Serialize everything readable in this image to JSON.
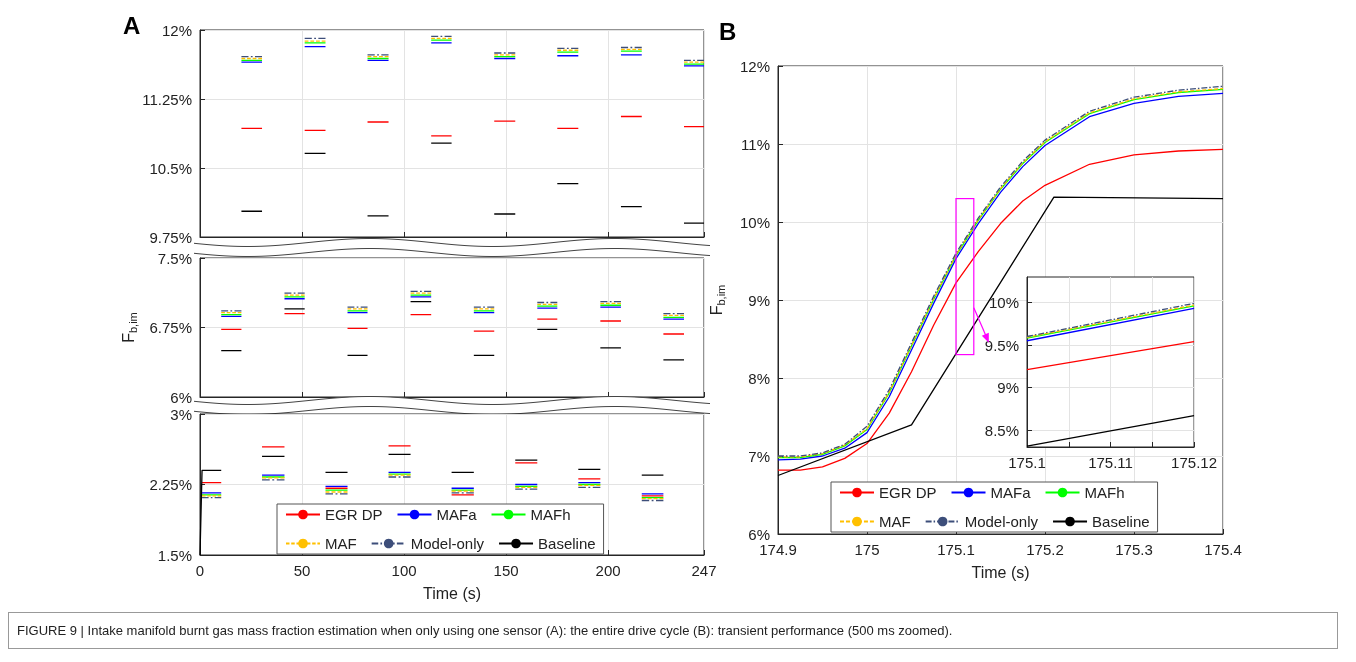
{
  "chart_data": [
    {
      "type": "line",
      "title": "A",
      "xlim": [
        0,
        247
      ],
      "xticks": [
        0,
        50,
        100,
        150,
        200,
        247
      ],
      "ylim": [
        9.75,
        12
      ],
      "yticks": [
        {
          "value": 9.75,
          "label": "9.75%"
        },
        {
          "value": 10.5,
          "label": "10.5%"
        },
        {
          "value": 11.25,
          "label": "11.25%"
        },
        {
          "value": 12,
          "label": "12%"
        }
      ],
      "tick_labels": "y",
      "grid": true,
      "marker": "none",
      "annotations": [
        "FIGURE 9 | Intake manifold burnt gas mass fraction estimation when only using one sensor (A): the entire drive cycle (B): transient performance (500 ms zoomed)."
      ],
      "series": [
        {
          "color": "#ff0000",
          "line_style": "solid",
          "x": [
            20.3,
            30.4
          ],
          "values": [
            10.93,
            10.93
          ]
        },
        {
          "color": "#ff0000",
          "line_style": "solid",
          "x": [
            51.3,
            61.5
          ],
          "values": [
            10.91,
            10.91
          ]
        },
        {
          "color": "#ff0000",
          "line_style": "solid",
          "x": [
            82.1,
            92.4
          ],
          "values": [
            11.0,
            11.0
          ]
        },
        {
          "color": "#ff0000",
          "line_style": "solid",
          "x": [
            113.3,
            123.3
          ],
          "values": [
            10.85,
            10.85
          ]
        },
        {
          "color": "#ff0000",
          "line_style": "solid",
          "x": [
            144.2,
            154.5
          ],
          "values": [
            11.01,
            11.01
          ]
        },
        {
          "color": "#ff0000",
          "line_style": "solid",
          "x": [
            175.1,
            185.4
          ],
          "values": [
            10.93,
            10.93
          ]
        },
        {
          "color": "#ff0000",
          "line_style": "solid",
          "x": [
            206.3,
            216.5
          ],
          "values": [
            11.06,
            11.06
          ]
        },
        {
          "color": "#ff0000",
          "line_style": "solid",
          "x": [
            237.2,
            247
          ],
          "values": [
            10.95,
            10.95
          ]
        },
        {
          "color": "#0000ff",
          "line_style": "solid",
          "x": [
            20.3,
            30.4
          ],
          "values": [
            11.65,
            11.65
          ]
        },
        {
          "color": "#0000ff",
          "line_style": "solid",
          "x": [
            51.3,
            61.5
          ],
          "values": [
            11.82,
            11.82
          ]
        },
        {
          "color": "#0000ff",
          "line_style": "solid",
          "x": [
            82.1,
            92.4
          ],
          "values": [
            11.67,
            11.67
          ]
        },
        {
          "color": "#0000ff",
          "line_style": "solid",
          "x": [
            113.3,
            123.3
          ],
          "values": [
            11.86,
            11.86
          ]
        },
        {
          "color": "#0000ff",
          "line_style": "solid",
          "x": [
            144.2,
            154.5
          ],
          "values": [
            11.69,
            11.69
          ]
        },
        {
          "color": "#0000ff",
          "line_style": "solid",
          "x": [
            175.1,
            185.4
          ],
          "values": [
            11.72,
            11.72
          ]
        },
        {
          "color": "#0000ff",
          "line_style": "solid",
          "x": [
            206.3,
            216.5
          ],
          "values": [
            11.73,
            11.73
          ]
        },
        {
          "color": "#0000ff",
          "line_style": "solid",
          "x": [
            237.2,
            247
          ],
          "values": [
            11.61,
            11.61
          ]
        },
        {
          "color": "#00ff00",
          "line_style": "solid",
          "x": [
            20.3,
            30.4
          ],
          "values": [
            11.67,
            11.67
          ]
        },
        {
          "color": "#00ff00",
          "line_style": "solid",
          "x": [
            51.3,
            61.5
          ],
          "values": [
            11.86,
            11.86
          ]
        },
        {
          "color": "#00ff00",
          "line_style": "solid",
          "x": [
            82.1,
            92.4
          ],
          "values": [
            11.69,
            11.69
          ]
        },
        {
          "color": "#00ff00",
          "line_style": "solid",
          "x": [
            113.3,
            123.3
          ],
          "values": [
            11.89,
            11.89
          ]
        },
        {
          "color": "#00ff00",
          "line_style": "solid",
          "x": [
            144.2,
            154.5
          ],
          "values": [
            11.71,
            11.71
          ]
        },
        {
          "color": "#00ff00",
          "line_style": "solid",
          "x": [
            175.1,
            185.4
          ],
          "values": [
            11.76,
            11.76
          ]
        },
        {
          "color": "#00ff00",
          "line_style": "solid",
          "x": [
            206.3,
            216.5
          ],
          "values": [
            11.77,
            11.77
          ]
        },
        {
          "color": "#00ff00",
          "line_style": "solid",
          "x": [
            237.2,
            247
          ],
          "values": [
            11.63,
            11.63
          ]
        },
        {
          "color": "#ffc000",
          "line_style": "dashed",
          "x": [
            20.3,
            30.4
          ],
          "values": [
            11.69,
            11.69
          ]
        },
        {
          "color": "#ffc000",
          "line_style": "dashed",
          "x": [
            51.3,
            61.5
          ],
          "values": [
            11.88,
            11.88
          ]
        },
        {
          "color": "#ffc000",
          "line_style": "dashed",
          "x": [
            82.1,
            92.4
          ],
          "values": [
            11.71,
            11.71
          ]
        },
        {
          "color": "#ffc000",
          "line_style": "dashed",
          "x": [
            113.3,
            123.3
          ],
          "values": [
            11.91,
            11.91
          ]
        },
        {
          "color": "#ffc000",
          "line_style": "dashed",
          "x": [
            144.2,
            154.5
          ],
          "values": [
            11.73,
            11.73
          ]
        },
        {
          "color": "#ffc000",
          "line_style": "dashed",
          "x": [
            175.1,
            185.4
          ],
          "values": [
            11.78,
            11.78
          ]
        },
        {
          "color": "#ffc000",
          "line_style": "dashed",
          "x": [
            206.3,
            216.5
          ],
          "values": [
            11.79,
            11.79
          ]
        },
        {
          "color": "#ffc000",
          "line_style": "dashed",
          "x": [
            237.2,
            247
          ],
          "values": [
            11.65,
            11.65
          ]
        },
        {
          "color": "#3d4e7a",
          "line_style": "dashdot",
          "x": [
            20.3,
            30.4
          ],
          "values": [
            11.71,
            11.71
          ]
        },
        {
          "color": "#3d4e7a",
          "line_style": "dashdot",
          "x": [
            51.3,
            61.5
          ],
          "values": [
            11.91,
            11.91
          ]
        },
        {
          "color": "#3d4e7a",
          "line_style": "dashdot",
          "x": [
            82.1,
            92.4
          ],
          "values": [
            11.73,
            11.73
          ]
        },
        {
          "color": "#3d4e7a",
          "line_style": "dashdot",
          "x": [
            113.3,
            123.3
          ],
          "values": [
            11.93,
            11.93
          ]
        },
        {
          "color": "#3d4e7a",
          "line_style": "dashdot",
          "x": [
            144.2,
            154.5
          ],
          "values": [
            11.75,
            11.75
          ]
        },
        {
          "color": "#3d4e7a",
          "line_style": "dashdot",
          "x": [
            175.1,
            185.4
          ],
          "values": [
            11.8,
            11.8
          ]
        },
        {
          "color": "#3d4e7a",
          "line_style": "dashdot",
          "x": [
            206.3,
            216.5
          ],
          "values": [
            11.81,
            11.81
          ]
        },
        {
          "color": "#3d4e7a",
          "line_style": "dashdot",
          "x": [
            237.2,
            247
          ],
          "values": [
            11.67,
            11.67
          ]
        },
        {
          "color": "#000000",
          "line_style": "solid",
          "x": [
            20.3,
            30.4
          ],
          "values": [
            10.03,
            10.03
          ]
        },
        {
          "color": "#000000",
          "line_style": "solid",
          "x": [
            51.3,
            61.5
          ],
          "values": [
            10.66,
            10.66
          ]
        },
        {
          "color": "#000000",
          "line_style": "solid",
          "x": [
            82.1,
            92.4
          ],
          "values": [
            9.98,
            9.98
          ]
        },
        {
          "color": "#000000",
          "line_style": "solid",
          "x": [
            113.3,
            123.3
          ],
          "values": [
            10.77,
            10.77
          ]
        },
        {
          "color": "#000000",
          "line_style": "solid",
          "x": [
            144.2,
            154.5
          ],
          "values": [
            10.0,
            10.0
          ]
        },
        {
          "color": "#000000",
          "line_style": "solid",
          "x": [
            175.1,
            185.4
          ],
          "values": [
            10.33,
            10.33
          ]
        },
        {
          "color": "#000000",
          "line_style": "solid",
          "x": [
            206.3,
            216.5
          ],
          "values": [
            10.08,
            10.08
          ]
        },
        {
          "color": "#000000",
          "line_style": "solid",
          "x": [
            237.2,
            247
          ],
          "values": [
            9.9,
            9.9
          ]
        }
      ]
    },
    {
      "type": "line",
      "ylabel": "F$_{b,im}$",
      "xlim": [
        0,
        247
      ],
      "xticks": [
        0,
        50,
        100,
        150,
        200,
        247
      ],
      "ylim": [
        6,
        7.5
      ],
      "yticks": [
        {
          "value": 6,
          "label": "6%"
        },
        {
          "value": 6.75,
          "label": "6.75%"
        },
        {
          "value": 7.5,
          "label": "7.5%"
        }
      ],
      "tick_labels": "y",
      "grid": true,
      "marker": "none",
      "series": [
        {
          "color": "#ff0000",
          "line_style": "solid",
          "x": [
            10.4,
            20.3
          ],
          "values": [
            6.73,
            6.73
          ]
        },
        {
          "color": "#ff0000",
          "line_style": "solid",
          "x": [
            41.4,
            51.3
          ],
          "values": [
            6.9,
            6.9
          ]
        },
        {
          "color": "#ff0000",
          "line_style": "solid",
          "x": [
            72.3,
            82.1
          ],
          "values": [
            6.74,
            6.74
          ]
        },
        {
          "color": "#ff0000",
          "line_style": "solid",
          "x": [
            103.2,
            113.3
          ],
          "values": [
            6.89,
            6.89
          ]
        },
        {
          "color": "#ff0000",
          "line_style": "solid",
          "x": [
            134.2,
            144.2
          ],
          "values": [
            6.71,
            6.71
          ]
        },
        {
          "color": "#ff0000",
          "line_style": "solid",
          "x": [
            165.3,
            175.1
          ],
          "values": [
            6.84,
            6.84
          ]
        },
        {
          "color": "#ff0000",
          "line_style": "solid",
          "x": [
            196.2,
            206.3
          ],
          "values": [
            6.82,
            6.82
          ]
        },
        {
          "color": "#ff0000",
          "line_style": "solid",
          "x": [
            227.1,
            237.2
          ],
          "values": [
            6.68,
            6.68
          ]
        },
        {
          "color": "#0000ff",
          "line_style": "solid",
          "x": [
            10.4,
            20.3
          ],
          "values": [
            6.87,
            6.87
          ]
        },
        {
          "color": "#0000ff",
          "line_style": "solid",
          "x": [
            41.4,
            51.3
          ],
          "values": [
            7.06,
            7.06
          ]
        },
        {
          "color": "#0000ff",
          "line_style": "solid",
          "x": [
            72.3,
            82.1
          ],
          "values": [
            6.91,
            6.91
          ]
        },
        {
          "color": "#0000ff",
          "line_style": "solid",
          "x": [
            103.2,
            113.3
          ],
          "values": [
            7.08,
            7.08
          ]
        },
        {
          "color": "#0000ff",
          "line_style": "solid",
          "x": [
            134.2,
            144.2
          ],
          "values": [
            6.91,
            6.91
          ]
        },
        {
          "color": "#0000ff",
          "line_style": "solid",
          "x": [
            165.3,
            175.1
          ],
          "values": [
            6.96,
            6.96
          ]
        },
        {
          "color": "#0000ff",
          "line_style": "solid",
          "x": [
            196.2,
            206.3
          ],
          "values": [
            6.97,
            6.97
          ]
        },
        {
          "color": "#0000ff",
          "line_style": "solid",
          "x": [
            227.1,
            237.2
          ],
          "values": [
            6.84,
            6.84
          ]
        },
        {
          "color": "#00ff00",
          "line_style": "solid",
          "x": [
            10.4,
            20.3
          ],
          "values": [
            6.89,
            6.89
          ]
        },
        {
          "color": "#00ff00",
          "line_style": "solid",
          "x": [
            41.4,
            51.3
          ],
          "values": [
            7.08,
            7.08
          ]
        },
        {
          "color": "#00ff00",
          "line_style": "solid",
          "x": [
            72.3,
            82.1
          ],
          "values": [
            6.93,
            6.93
          ]
        },
        {
          "color": "#00ff00",
          "line_style": "solid",
          "x": [
            103.2,
            113.3
          ],
          "values": [
            7.1,
            7.1
          ]
        },
        {
          "color": "#00ff00",
          "line_style": "solid",
          "x": [
            134.2,
            144.2
          ],
          "values": [
            6.93,
            6.93
          ]
        },
        {
          "color": "#00ff00",
          "line_style": "solid",
          "x": [
            165.3,
            175.1
          ],
          "values": [
            6.98,
            6.98
          ]
        },
        {
          "color": "#00ff00",
          "line_style": "solid",
          "x": [
            196.2,
            206.3
          ],
          "values": [
            6.99,
            6.99
          ]
        },
        {
          "color": "#00ff00",
          "line_style": "solid",
          "x": [
            227.1,
            237.2
          ],
          "values": [
            6.86,
            6.86
          ]
        },
        {
          "color": "#ffc000",
          "line_style": "dashed",
          "x": [
            10.4,
            20.3
          ],
          "values": [
            6.91,
            6.91
          ]
        },
        {
          "color": "#ffc000",
          "line_style": "dashed",
          "x": [
            41.4,
            51.3
          ],
          "values": [
            7.1,
            7.1
          ]
        },
        {
          "color": "#ffc000",
          "line_style": "dashed",
          "x": [
            72.3,
            82.1
          ],
          "values": [
            6.95,
            6.95
          ]
        },
        {
          "color": "#ffc000",
          "line_style": "dashed",
          "x": [
            103.2,
            113.3
          ],
          "values": [
            7.12,
            7.12
          ]
        },
        {
          "color": "#ffc000",
          "line_style": "dashed",
          "x": [
            134.2,
            144.2
          ],
          "values": [
            6.95,
            6.95
          ]
        },
        {
          "color": "#ffc000",
          "line_style": "dashed",
          "x": [
            165.3,
            175.1
          ],
          "values": [
            7.0,
            7.0
          ]
        },
        {
          "color": "#ffc000",
          "line_style": "dashed",
          "x": [
            196.2,
            206.3
          ],
          "values": [
            7.01,
            7.01
          ]
        },
        {
          "color": "#ffc000",
          "line_style": "dashed",
          "x": [
            227.1,
            237.2
          ],
          "values": [
            6.88,
            6.88
          ]
        },
        {
          "color": "#3d4e7a",
          "line_style": "dashdot",
          "x": [
            10.4,
            20.3
          ],
          "values": [
            6.93,
            6.93
          ]
        },
        {
          "color": "#3d4e7a",
          "line_style": "dashdot",
          "x": [
            41.4,
            51.3
          ],
          "values": [
            7.12,
            7.12
          ]
        },
        {
          "color": "#3d4e7a",
          "line_style": "dashdot",
          "x": [
            72.3,
            82.1
          ],
          "values": [
            6.97,
            6.97
          ]
        },
        {
          "color": "#3d4e7a",
          "line_style": "dashdot",
          "x": [
            103.2,
            113.3
          ],
          "values": [
            7.14,
            7.14
          ]
        },
        {
          "color": "#3d4e7a",
          "line_style": "dashdot",
          "x": [
            134.2,
            144.2
          ],
          "values": [
            6.97,
            6.97
          ]
        },
        {
          "color": "#3d4e7a",
          "line_style": "dashdot",
          "x": [
            165.3,
            175.1
          ],
          "values": [
            7.02,
            7.02
          ]
        },
        {
          "color": "#3d4e7a",
          "line_style": "dashdot",
          "x": [
            196.2,
            206.3
          ],
          "values": [
            7.03,
            7.03
          ]
        },
        {
          "color": "#3d4e7a",
          "line_style": "dashdot",
          "x": [
            227.1,
            237.2
          ],
          "values": [
            6.9,
            6.9
          ]
        },
        {
          "color": "#000000",
          "line_style": "solid",
          "x": [
            10.4,
            20.3
          ],
          "values": [
            6.5,
            6.5
          ]
        },
        {
          "color": "#000000",
          "line_style": "solid",
          "x": [
            41.4,
            51.3
          ],
          "values": [
            6.95,
            6.95
          ]
        },
        {
          "color": "#000000",
          "line_style": "solid",
          "x": [
            72.3,
            82.1
          ],
          "values": [
            6.45,
            6.45
          ]
        },
        {
          "color": "#000000",
          "line_style": "solid",
          "x": [
            103.2,
            113.3
          ],
          "values": [
            7.03,
            7.03
          ]
        },
        {
          "color": "#000000",
          "line_style": "solid",
          "x": [
            134.2,
            144.2
          ],
          "values": [
            6.45,
            6.45
          ]
        },
        {
          "color": "#000000",
          "line_style": "solid",
          "x": [
            165.3,
            175.1
          ],
          "values": [
            6.73,
            6.73
          ]
        },
        {
          "color": "#000000",
          "line_style": "solid",
          "x": [
            196.2,
            206.3
          ],
          "values": [
            6.53,
            6.53
          ]
        },
        {
          "color": "#000000",
          "line_style": "solid",
          "x": [
            227.1,
            237.2
          ],
          "values": [
            6.4,
            6.4
          ]
        }
      ]
    },
    {
      "type": "line",
      "xlabel": "Time (s)",
      "legend": "bottom",
      "xlim": [
        0,
        247
      ],
      "xticks": [
        0,
        50,
        100,
        150,
        200,
        247
      ],
      "ylim": [
        1.5,
        3
      ],
      "yticks": [
        {
          "value": 1.5,
          "label": "1.5%"
        },
        {
          "value": 2.25,
          "label": "2.25%"
        },
        {
          "value": 3,
          "label": "3%"
        }
      ],
      "grid": true,
      "marker": "none",
      "series": [
        {
          "name": "EGR DP",
          "color": "#ff0000",
          "line_style": "solid",
          "x": [
            1,
            10.4
          ],
          "values": [
            2.27,
            2.27
          ]
        },
        {
          "color": "#ff0000",
          "line_style": "solid",
          "x": [
            30.4,
            41.4
          ],
          "values": [
            2.65,
            2.65
          ]
        },
        {
          "color": "#ff0000",
          "line_style": "solid",
          "x": [
            61.5,
            72.3
          ],
          "values": [
            2.21,
            2.21
          ]
        },
        {
          "color": "#ff0000",
          "line_style": "solid",
          "x": [
            92.4,
            103.2
          ],
          "values": [
            2.66,
            2.66
          ]
        },
        {
          "color": "#ff0000",
          "line_style": "solid",
          "x": [
            123.3,
            134.2
          ],
          "values": [
            2.14,
            2.14
          ]
        },
        {
          "color": "#ff0000",
          "line_style": "solid",
          "x": [
            154.5,
            165.3
          ],
          "values": [
            2.48,
            2.48
          ]
        },
        {
          "color": "#ff0000",
          "line_style": "solid",
          "x": [
            185.4,
            196.2
          ],
          "values": [
            2.31,
            2.31
          ]
        },
        {
          "color": "#ff0000",
          "line_style": "solid",
          "x": [
            216.5,
            227.1
          ],
          "values": [
            2.13,
            2.13
          ]
        },
        {
          "name": "MAFa",
          "color": "#0000ff",
          "line_style": "solid",
          "x": [
            1,
            10.4
          ],
          "values": [
            2.16,
            2.16
          ]
        },
        {
          "color": "#0000ff",
          "line_style": "solid",
          "x": [
            30.4,
            41.4
          ],
          "values": [
            2.35,
            2.35
          ]
        },
        {
          "color": "#0000ff",
          "line_style": "solid",
          "x": [
            61.5,
            72.3
          ],
          "values": [
            2.23,
            2.23
          ]
        },
        {
          "color": "#0000ff",
          "line_style": "solid",
          "x": [
            92.4,
            103.2
          ],
          "values": [
            2.38,
            2.38
          ]
        },
        {
          "color": "#0000ff",
          "line_style": "solid",
          "x": [
            123.3,
            134.2
          ],
          "values": [
            2.21,
            2.21
          ]
        },
        {
          "color": "#0000ff",
          "line_style": "solid",
          "x": [
            154.5,
            165.3
          ],
          "values": [
            2.25,
            2.25
          ]
        },
        {
          "color": "#0000ff",
          "line_style": "solid",
          "x": [
            185.4,
            196.2
          ],
          "values": [
            2.27,
            2.27
          ]
        },
        {
          "color": "#0000ff",
          "line_style": "solid",
          "x": [
            216.5,
            227.1
          ],
          "values": [
            2.15,
            2.15
          ]
        },
        {
          "name": "MAFh",
          "color": "#00ff00",
          "line_style": "solid",
          "x": [
            1,
            10.4
          ],
          "values": [
            2.14,
            2.14
          ]
        },
        {
          "color": "#00ff00",
          "line_style": "solid",
          "x": [
            30.4,
            41.4
          ],
          "values": [
            2.33,
            2.33
          ]
        },
        {
          "color": "#00ff00",
          "line_style": "solid",
          "x": [
            61.5,
            72.3
          ],
          "values": [
            2.19,
            2.19
          ]
        },
        {
          "color": "#00ff00",
          "line_style": "solid",
          "x": [
            92.4,
            103.2
          ],
          "values": [
            2.36,
            2.36
          ]
        },
        {
          "color": "#00ff00",
          "line_style": "solid",
          "x": [
            123.3,
            134.2
          ],
          "values": [
            2.19,
            2.19
          ]
        },
        {
          "color": "#00ff00",
          "line_style": "solid",
          "x": [
            154.5,
            165.3
          ],
          "values": [
            2.23,
            2.23
          ]
        },
        {
          "color": "#00ff00",
          "line_style": "solid",
          "x": [
            185.4,
            196.2
          ],
          "values": [
            2.25,
            2.25
          ]
        },
        {
          "color": "#00ff00",
          "line_style": "solid",
          "x": [
            216.5,
            227.1
          ],
          "values": [
            2.11,
            2.11
          ]
        },
        {
          "name": "MAF",
          "color": "#ffc000",
          "line_style": "dashed",
          "x": [
            1,
            10.4
          ],
          "values": [
            2.13,
            2.13
          ]
        },
        {
          "color": "#ffc000",
          "line_style": "dashed",
          "x": [
            30.4,
            41.4
          ],
          "values": [
            2.32,
            2.32
          ]
        },
        {
          "color": "#ffc000",
          "line_style": "dashed",
          "x": [
            61.5,
            72.3
          ],
          "values": [
            2.17,
            2.17
          ]
        },
        {
          "color": "#ffc000",
          "line_style": "dashed",
          "x": [
            92.4,
            103.2
          ],
          "values": [
            2.35,
            2.35
          ]
        },
        {
          "color": "#ffc000",
          "line_style": "dashed",
          "x": [
            123.3,
            134.2
          ],
          "values": [
            2.18,
            2.18
          ]
        },
        {
          "color": "#ffc000",
          "line_style": "dashed",
          "x": [
            154.5,
            165.3
          ],
          "values": [
            2.22,
            2.22
          ]
        },
        {
          "color": "#ffc000",
          "line_style": "dashed",
          "x": [
            185.4,
            196.2
          ],
          "values": [
            2.24,
            2.24
          ]
        },
        {
          "color": "#ffc000",
          "line_style": "dashed",
          "x": [
            216.5,
            227.1
          ],
          "values": [
            2.1,
            2.1
          ]
        },
        {
          "name": "Model-only",
          "color": "#3d4e7a",
          "line_style": "dashdot",
          "x": [
            1,
            10.4
          ],
          "values": [
            2.11,
            2.11
          ]
        },
        {
          "color": "#3d4e7a",
          "line_style": "dashdot",
          "x": [
            30.4,
            41.4
          ],
          "values": [
            2.3,
            2.3
          ]
        },
        {
          "color": "#3d4e7a",
          "line_style": "dashdot",
          "x": [
            61.5,
            72.3
          ],
          "values": [
            2.15,
            2.15
          ]
        },
        {
          "color": "#3d4e7a",
          "line_style": "dashdot",
          "x": [
            92.4,
            103.2
          ],
          "values": [
            2.33,
            2.33
          ]
        },
        {
          "color": "#3d4e7a",
          "line_style": "dashdot",
          "x": [
            123.3,
            134.2
          ],
          "values": [
            2.16,
            2.16
          ]
        },
        {
          "color": "#3d4e7a",
          "line_style": "dashdot",
          "x": [
            154.5,
            165.3
          ],
          "values": [
            2.2,
            2.2
          ]
        },
        {
          "color": "#3d4e7a",
          "line_style": "dashdot",
          "x": [
            185.4,
            196.2
          ],
          "values": [
            2.22,
            2.22
          ]
        },
        {
          "color": "#3d4e7a",
          "line_style": "dashdot",
          "x": [
            216.5,
            227.1
          ],
          "values": [
            2.08,
            2.08
          ]
        },
        {
          "name": "Baseline",
          "color": "#000000",
          "line_style": "solid",
          "x": [
            0,
            1,
            10.4
          ],
          "values": [
            1.5,
            2.4,
            2.4
          ]
        },
        {
          "color": "#000000",
          "line_style": "solid",
          "x": [
            30.4,
            41.4
          ],
          "values": [
            2.55,
            2.55
          ]
        },
        {
          "color": "#000000",
          "line_style": "solid",
          "x": [
            61.5,
            72.3
          ],
          "values": [
            2.38,
            2.38
          ]
        },
        {
          "color": "#000000",
          "line_style": "solid",
          "x": [
            92.4,
            103.2
          ],
          "values": [
            2.57,
            2.57
          ]
        },
        {
          "color": "#000000",
          "line_style": "solid",
          "x": [
            123.3,
            134.2
          ],
          "values": [
            2.38,
            2.38
          ]
        },
        {
          "color": "#000000",
          "line_style": "solid",
          "x": [
            154.5,
            165.3
          ],
          "values": [
            2.51,
            2.51
          ]
        },
        {
          "color": "#000000",
          "line_style": "solid",
          "x": [
            185.4,
            196.2
          ],
          "values": [
            2.41,
            2.41
          ]
        },
        {
          "color": "#000000",
          "line_style": "solid",
          "x": [
            216.5,
            227.1
          ],
          "values": [
            2.35,
            2.35
          ]
        }
      ]
    },
    {
      "type": "line",
      "title": "B",
      "xlabel": "Time (s)",
      "ylabel": "F$_{b,im}$",
      "legend": "bottom",
      "x": [
        174.9,
        174.925,
        174.95,
        174.975,
        175,
        175.025,
        175.05,
        175.075,
        175.1,
        175.125,
        175.15,
        175.175,
        175.2,
        175.25,
        175.3,
        175.35,
        175.4
      ],
      "xlim": [
        174.9,
        175.4
      ],
      "xticks": [
        174.9,
        175,
        175.1,
        175.2,
        175.3,
        175.4
      ],
      "ylim": [
        6,
        12
      ],
      "yticks": [
        {
          "value": 6,
          "label": "6%"
        },
        {
          "value": 7,
          "label": "7%"
        },
        {
          "value": 8,
          "label": "8%"
        },
        {
          "value": 9,
          "label": "9%"
        },
        {
          "value": 10,
          "label": "10%"
        },
        {
          "value": 11,
          "label": "11%"
        },
        {
          "value": 12,
          "label": "12%"
        }
      ],
      "grid": true,
      "marker": "none",
      "series": [
        {
          "name": "EGR DP",
          "color": "#ff0000",
          "line_style": "solid",
          "values": [
            6.82,
            6.82,
            6.86,
            6.97,
            7.16,
            7.55,
            8.08,
            8.68,
            9.22,
            9.62,
            9.98,
            10.27,
            10.47,
            10.74,
            10.86,
            10.91,
            10.93
          ]
        },
        {
          "name": "MAFa",
          "color": "#0000ff",
          "line_style": "solid",
          "values": [
            6.95,
            6.96,
            7.0,
            7.1,
            7.3,
            7.76,
            8.36,
            8.96,
            9.53,
            9.98,
            10.38,
            10.71,
            10.98,
            11.35,
            11.52,
            11.61,
            11.65
          ]
        },
        {
          "name": "MAFh",
          "color": "#00ff00",
          "line_style": "solid",
          "values": [
            6.98,
            6.98,
            7.02,
            7.13,
            7.34,
            7.81,
            8.41,
            9.01,
            9.57,
            10.02,
            10.42,
            10.75,
            11.02,
            11.39,
            11.57,
            11.66,
            11.7
          ]
        },
        {
          "name": "MAF",
          "color": "#ffc000",
          "line_style": "dashed",
          "values": [
            6.99,
            6.99,
            7.03,
            7.14,
            7.35,
            7.82,
            8.42,
            9.02,
            9.58,
            10.03,
            10.43,
            10.76,
            11.03,
            11.4,
            11.58,
            11.67,
            11.71
          ]
        },
        {
          "name": "Model-only",
          "color": "#3d4e7a",
          "line_style": "dashdot",
          "values": [
            7.0,
            7.0,
            7.04,
            7.15,
            7.38,
            7.85,
            8.45,
            9.05,
            9.6,
            10.05,
            10.45,
            10.78,
            11.05,
            11.42,
            11.6,
            11.69,
            11.74
          ]
        },
        {
          "name": "Baseline",
          "color": "#000000",
          "line_style": "solid",
          "x": [
            174.9,
            175.05,
            175.21,
            175.4
          ],
          "values": [
            6.75,
            7.4,
            10.32,
            10.3
          ]
        }
      ]
    },
    {
      "type": "line",
      "x": [
        175.1,
        175.12
      ],
      "xlim": [
        175.1,
        175.12
      ],
      "xticks": [
        175.1,
        {
          "value": 175.105,
          "label": null
        },
        175.11,
        {
          "value": 175.115,
          "label": null
        },
        175.12
      ],
      "ylim": [
        8.3,
        10.3
      ],
      "yticks": [
        {
          "value": 8.5,
          "label": "8.5%"
        },
        {
          "value": 9,
          "label": "9%"
        },
        {
          "value": 9.5,
          "label": "9.5%"
        },
        {
          "value": 10,
          "label": "10%"
        }
      ],
      "grid": true,
      "marker": "none",
      "series": [
        {
          "color": "#ff0000",
          "line_style": "solid",
          "values": [
            9.21,
            9.54
          ]
        },
        {
          "color": "#0000ff",
          "line_style": "solid",
          "values": [
            9.55,
            9.93
          ]
        },
        {
          "color": "#00ff00",
          "line_style": "solid",
          "values": [
            9.58,
            9.96
          ]
        },
        {
          "color": "#ffc000",
          "line_style": "dashed",
          "values": [
            9.59,
            9.97
          ]
        },
        {
          "color": "#3d4e7a",
          "line_style": "dashdot",
          "values": [
            9.6,
            9.99
          ]
        },
        {
          "color": "#000000",
          "line_style": "solid",
          "values": [
            8.31,
            8.67
          ]
        }
      ]
    }
  ]
}
